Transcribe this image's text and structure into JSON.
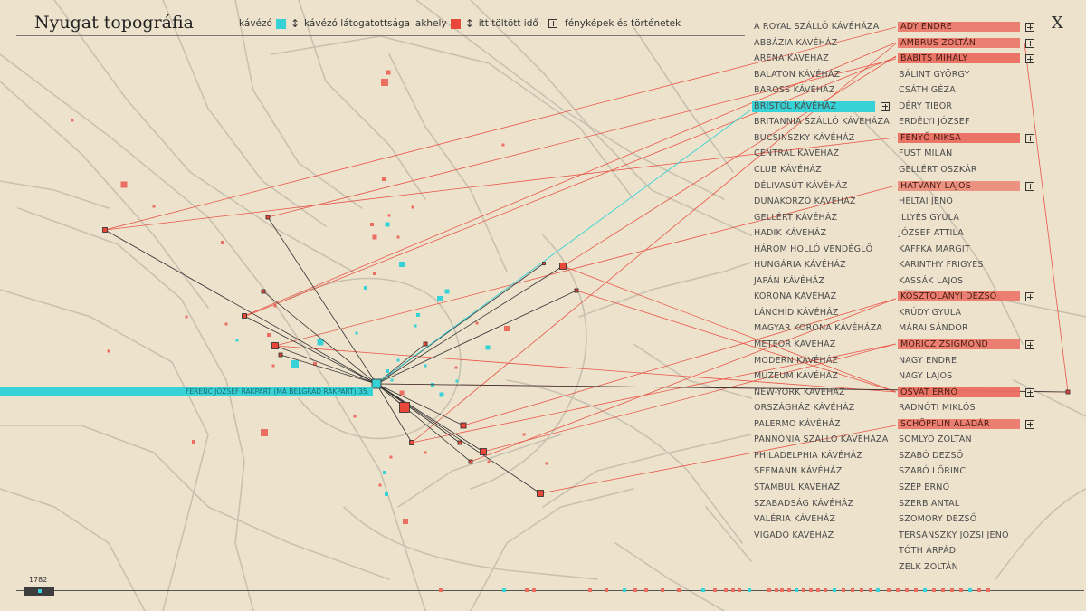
{
  "header": {
    "title": "Nyugat topográfia",
    "legend_cafe": "kávézó",
    "legend_cafe_visits": "kávézó látogatottsága",
    "legend_residence": "lakhely",
    "legend_time": "itt töltött idő",
    "legend_photos": "fényképek és történetek",
    "close_label": "X"
  },
  "colors": {
    "cafe": "#37d2d6",
    "residence": "#e9473a",
    "background": "#ede3cd",
    "person_bar": "#ea6f61"
  },
  "cafes": [
    "A ROYAL SZÁLLÓ KÁVÉHÁZA",
    "ABBÁZIA KÁVÉHÁZ",
    "ARÉNA KÁVÉHÁZ",
    "BALATON KÁVÉHÁZ",
    "BAROSS KÁVÉHÁZ",
    "BRISTOL KÁVÉHÁZ",
    "BRITANNIA SZÁLLÓ KÁVÉHÁZA",
    "BUCSINSZKY KÁVÉHÁZ",
    "CENTRAL KÁVÉHÁZ",
    "CLUB KÁVÉHÁZ",
    "DÉLIVASÚT KÁVÉHÁZ",
    "DUNAKORZÓ KÁVÉHÁZ",
    "GELLÉRT KÁVÉHÁZ",
    "HADIK KÁVÉHÁZ",
    "HÁROM HOLLÓ VENDÉGLŐ",
    "HUNGÁRIA KÁVÉHÁZ",
    "JAPÁN KÁVÉHÁZ",
    "KORONA KÁVÉHÁZ",
    "LÁNCHÍD KÁVÉHÁZ",
    "MAGYAR KORONA KÁVÉHÁZA",
    "METEOR KÁVÉHÁZ",
    "MODERN KÁVÉHÁZ",
    "MÚZEUM KÁVÉHÁZ",
    "NEW-YORK KÁVÉHÁZ",
    "ORSZÁGHÁZ KÁVÉHÁZ",
    "PALERMO KÁVÉHÁZ",
    "PANNÓNIA SZÁLLÓ KÁVÉHÁZA",
    "PHILADELPHIA KÁVÉHÁZ",
    "SEEMANN KÁVÉHÁZ",
    "STAMBUL KÁVÉHÁZ",
    "SZABADSÁG KÁVÉHÁZ",
    "VALÉRIA KÁVÉHÁZ",
    "VIGADÓ KÁVÉHÁZ"
  ],
  "selected_cafe": 5,
  "people": [
    {
      "name": "ADY ENDRE",
      "level": 0.85,
      "photos": true
    },
    {
      "name": "AMBRUS ZOLTÁN",
      "level": 0.85,
      "photos": true
    },
    {
      "name": "BABITS MIHÁLY",
      "level": 0.95,
      "photos": true
    },
    {
      "name": "BÁLINT GYÖRGY",
      "level": 0
    },
    {
      "name": "CSÁTH GÉZA",
      "level": 0
    },
    {
      "name": "DÉRY TIBOR",
      "level": 0
    },
    {
      "name": "ERDÉLYI JÓZSEF",
      "level": 0
    },
    {
      "name": "FENYŐ MIKSA",
      "level": 0.95,
      "photos": true
    },
    {
      "name": "FÜST MILÁN",
      "level": 0
    },
    {
      "name": "GELLÉRT OSZKÁR",
      "level": 0
    },
    {
      "name": "HATVANY LAJOS",
      "level": 0.7,
      "photos": true
    },
    {
      "name": "HELTAI JENŐ",
      "level": 0
    },
    {
      "name": "ILLYÉS GYULA",
      "level": 0
    },
    {
      "name": "JÓZSEF ATTILA",
      "level": 0
    },
    {
      "name": "KAFFKA MARGIT",
      "level": 0
    },
    {
      "name": "KARINTHY FRIGYES",
      "level": 0
    },
    {
      "name": "KASSÁK LAJOS",
      "level": 0
    },
    {
      "name": "KOSZTOLÁNYI DEZSŐ",
      "level": 0.85,
      "photos": true
    },
    {
      "name": "KRÚDY GYULA",
      "level": 0
    },
    {
      "name": "MÁRAI SÁNDOR",
      "level": 0
    },
    {
      "name": "MÓRICZ ZSIGMOND",
      "level": 0.85,
      "photos": true
    },
    {
      "name": "NAGY ENDRE",
      "level": 0
    },
    {
      "name": "NAGY LAJOS",
      "level": 0
    },
    {
      "name": "OSVÁT ERNŐ",
      "level": 0.95,
      "photos": true
    },
    {
      "name": "RADNÓTI MIKLÓS",
      "level": 0
    },
    {
      "name": "SCHÖPFLIN ALADÁR",
      "level": 0.85,
      "photos": true
    },
    {
      "name": "SOMLYÓ ZOLTÁN",
      "level": 0
    },
    {
      "name": "SZABÓ DEZSŐ",
      "level": 0
    },
    {
      "name": "SZABÓ LŐRINC",
      "level": 0
    },
    {
      "name": "SZÉP ERNŐ",
      "level": 0
    },
    {
      "name": "SZERB ANTAL",
      "level": 0
    },
    {
      "name": "SZOMORY DEZSŐ",
      "level": 0
    },
    {
      "name": "TERSÁNSZKY JÓZSI JENŐ",
      "level": 0
    },
    {
      "name": "TÓTH ÁRPÁD",
      "level": 0
    },
    {
      "name": "ZELK ZOLTÁN",
      "level": 0
    }
  ],
  "address_label": "FERENC JÓZSEF RAKPART (MA BELGRÁD RAKPART) 35.",
  "timeline": {
    "year": "1782"
  }
}
